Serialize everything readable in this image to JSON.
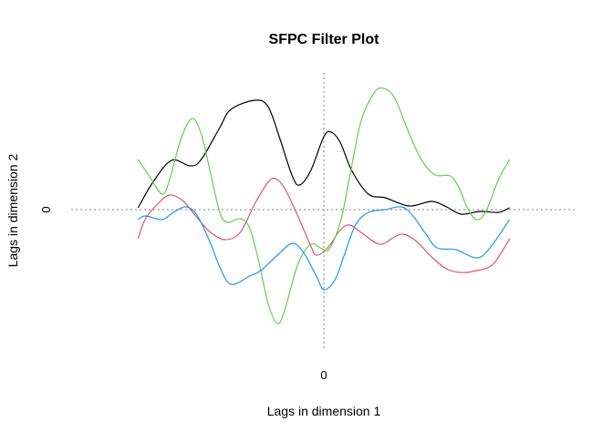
{
  "chart_data": {
    "type": "line",
    "title": "SFPC Filter Plot",
    "xlabel": "Lags in dimension 1",
    "ylabel": "Lags in dimension 2",
    "x_ticks": [
      "0"
    ],
    "y_ticks": [
      "0"
    ],
    "xlim": [
      -1.36,
      1.36
    ],
    "ylim": [
      -1.53,
      1.5
    ],
    "reference_lines": {
      "h": 0,
      "v": 0,
      "style": "dotted",
      "color": "#808080"
    },
    "grid": false,
    "series": [
      {
        "color": "#000000",
        "points": [
          [
            -1.0,
            0.02
          ],
          [
            -0.92,
            0.3
          ],
          [
            -0.82,
            0.54
          ],
          [
            -0.72,
            0.48
          ],
          [
            -0.66,
            0.55
          ],
          [
            -0.56,
            0.9
          ],
          [
            -0.5,
            1.1
          ],
          [
            -0.37,
            1.2
          ],
          [
            -0.3,
            1.13
          ],
          [
            -0.24,
            0.8
          ],
          [
            -0.17,
            0.37
          ],
          [
            -0.13,
            0.27
          ],
          [
            -0.07,
            0.43
          ],
          [
            0.0,
            0.8
          ],
          [
            0.04,
            0.85
          ],
          [
            0.09,
            0.73
          ],
          [
            0.15,
            0.43
          ],
          [
            0.24,
            0.17
          ],
          [
            0.33,
            0.13
          ],
          [
            0.46,
            0.04
          ],
          [
            0.58,
            0.09
          ],
          [
            0.66,
            0.03
          ],
          [
            0.74,
            -0.05
          ],
          [
            0.84,
            -0.02
          ],
          [
            0.94,
            -0.03
          ],
          [
            1.0,
            0.02
          ]
        ]
      },
      {
        "color": "#DF536B",
        "points": [
          [
            -1.0,
            -0.32
          ],
          [
            -0.96,
            -0.1
          ],
          [
            -0.89,
            0.07
          ],
          [
            -0.83,
            0.16
          ],
          [
            -0.76,
            0.1
          ],
          [
            -0.69,
            -0.07
          ],
          [
            -0.61,
            -0.25
          ],
          [
            -0.53,
            -0.33
          ],
          [
            -0.45,
            -0.25
          ],
          [
            -0.37,
            0.07
          ],
          [
            -0.3,
            0.3
          ],
          [
            -0.26,
            0.34
          ],
          [
            -0.21,
            0.23
          ],
          [
            -0.14,
            -0.07
          ],
          [
            -0.07,
            -0.4
          ],
          [
            -0.04,
            -0.5
          ],
          [
            0.02,
            -0.42
          ],
          [
            0.09,
            -0.22
          ],
          [
            0.14,
            -0.17
          ],
          [
            0.2,
            -0.25
          ],
          [
            0.3,
            -0.38
          ],
          [
            0.38,
            -0.3
          ],
          [
            0.43,
            -0.27
          ],
          [
            0.5,
            -0.35
          ],
          [
            0.58,
            -0.52
          ],
          [
            0.66,
            -0.65
          ],
          [
            0.74,
            -0.69
          ],
          [
            0.82,
            -0.67
          ],
          [
            0.91,
            -0.6
          ],
          [
            1.0,
            -0.32
          ]
        ]
      },
      {
        "color": "#61D04F",
        "points": [
          [
            -1.0,
            0.55
          ],
          [
            -0.94,
            0.37
          ],
          [
            -0.87,
            0.17
          ],
          [
            -0.83,
            0.33
          ],
          [
            -0.77,
            0.77
          ],
          [
            -0.71,
            1.0
          ],
          [
            -0.66,
            0.83
          ],
          [
            -0.61,
            0.4
          ],
          [
            -0.56,
            -0.03
          ],
          [
            -0.52,
            -0.14
          ],
          [
            -0.45,
            -0.1
          ],
          [
            -0.4,
            -0.2
          ],
          [
            -0.35,
            -0.57
          ],
          [
            -0.3,
            -1.03
          ],
          [
            -0.25,
            -1.25
          ],
          [
            -0.21,
            -1.1
          ],
          [
            -0.14,
            -0.6
          ],
          [
            -0.07,
            -0.38
          ],
          [
            -0.01,
            -0.43
          ],
          [
            0.03,
            -0.43
          ],
          [
            0.09,
            -0.13
          ],
          [
            0.14,
            0.37
          ],
          [
            0.2,
            0.97
          ],
          [
            0.27,
            1.28
          ],
          [
            0.32,
            1.33
          ],
          [
            0.38,
            1.23
          ],
          [
            0.46,
            0.83
          ],
          [
            0.53,
            0.53
          ],
          [
            0.6,
            0.38
          ],
          [
            0.68,
            0.37
          ],
          [
            0.73,
            0.23
          ],
          [
            0.77,
            0.03
          ],
          [
            0.82,
            -0.11
          ],
          [
            0.87,
            -0.03
          ],
          [
            0.94,
            0.33
          ],
          [
            1.0,
            0.55
          ]
        ]
      },
      {
        "color": "#2297E6",
        "points": [
          [
            -1.0,
            -0.11
          ],
          [
            -0.96,
            -0.07
          ],
          [
            -0.87,
            -0.11
          ],
          [
            -0.81,
            -0.03
          ],
          [
            -0.74,
            0.03
          ],
          [
            -0.68,
            -0.07
          ],
          [
            -0.61,
            -0.37
          ],
          [
            -0.56,
            -0.63
          ],
          [
            -0.5,
            -0.82
          ],
          [
            -0.4,
            -0.73
          ],
          [
            -0.34,
            -0.67
          ],
          [
            -0.25,
            -0.5
          ],
          [
            -0.17,
            -0.37
          ],
          [
            -0.11,
            -0.47
          ],
          [
            -0.04,
            -0.73
          ],
          [
            0.0,
            -0.88
          ],
          [
            0.06,
            -0.77
          ],
          [
            0.11,
            -0.5
          ],
          [
            0.17,
            -0.17
          ],
          [
            0.24,
            -0.03
          ],
          [
            0.33,
            0.0
          ],
          [
            0.42,
            0.03
          ],
          [
            0.48,
            -0.07
          ],
          [
            0.55,
            -0.27
          ],
          [
            0.61,
            -0.42
          ],
          [
            0.71,
            -0.44
          ],
          [
            0.82,
            -0.53
          ],
          [
            0.89,
            -0.43
          ],
          [
            1.0,
            -0.11
          ]
        ]
      }
    ]
  }
}
